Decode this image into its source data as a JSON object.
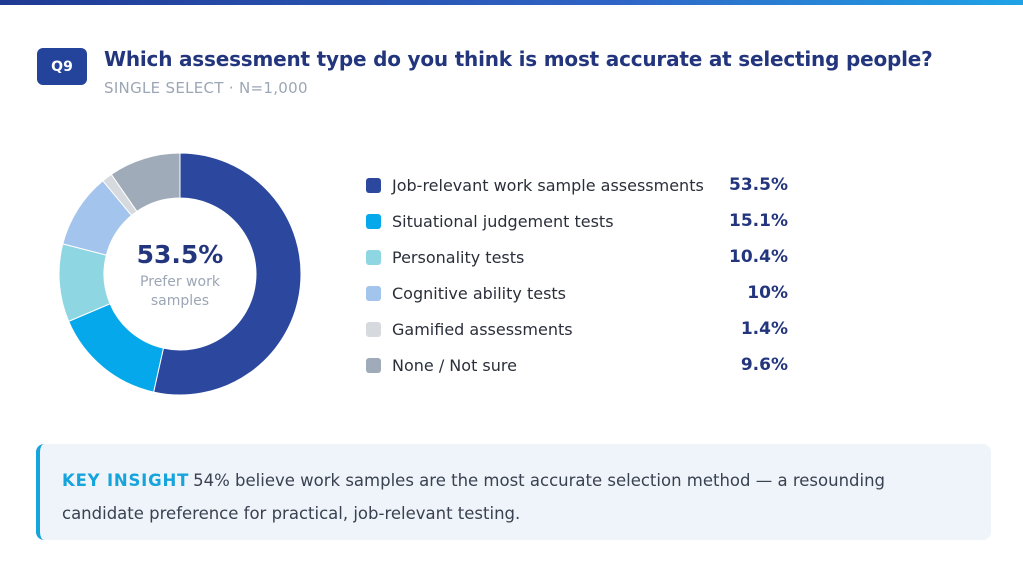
{
  "question": {
    "badge": "Q9",
    "title": "Which assessment type do you think is most accurate at selecting people?",
    "subtitle": "SINGLE SELECT · N=1,000"
  },
  "donut_center": {
    "value": "53.5%",
    "label": "Prefer work samples"
  },
  "chart_data": {
    "type": "pie",
    "title": "Which assessment type do you think is most accurate at selecting people?",
    "categories": [
      "Job-relevant work sample assessments",
      "Situational judgement tests",
      "Personality tests",
      "Cognitive ability tests",
      "Gamified assessments",
      "None / Not sure"
    ],
    "values": [
      53.5,
      15.1,
      10.4,
      10,
      1.4,
      9.6
    ],
    "value_labels": [
      "53.5%",
      "15.1%",
      "10.4%",
      "10%",
      "1.4%",
      "9.6%"
    ],
    "colors": [
      "#2c479e",
      "#05a8ea",
      "#8fd6e3",
      "#a3c4ec",
      "#d6d9dd",
      "#a0abb9"
    ],
    "legend": "right"
  },
  "insight": {
    "key": "KEY INSIGHT",
    "text": "54% believe work samples are the most accurate selection method — a resounding candidate preference for practical, job-relevant testing."
  }
}
